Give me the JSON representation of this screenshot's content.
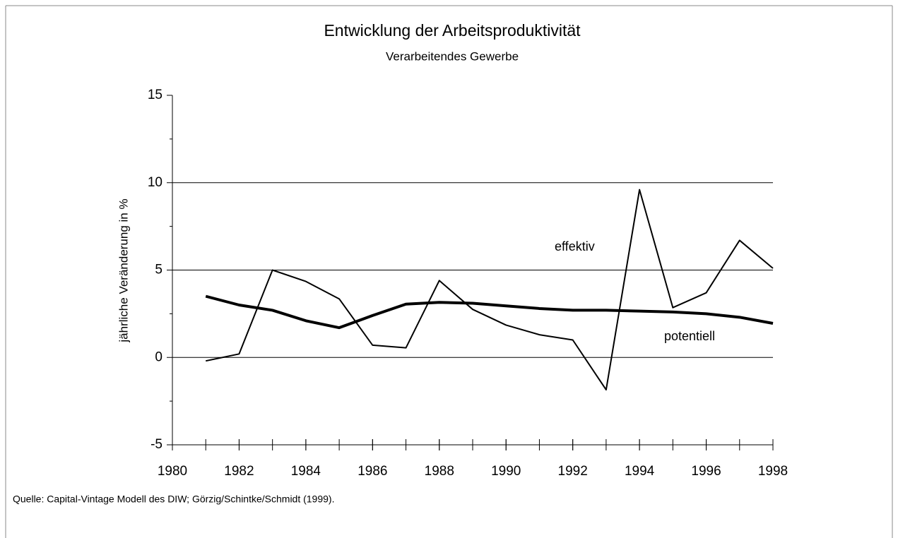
{
  "chart_data": {
    "type": "line",
    "title": "Entwicklung der Arbeitsproduktivität",
    "subtitle": "Verarbeitendes Gewerbe",
    "y_label": "jährliche Veränderung in %",
    "source": "Quelle: Capital-Vintage Modell des DIW; Görzig/Schintke/Schmidt (1999).",
    "x": [
      1981,
      1982,
      1983,
      1984,
      1985,
      1986,
      1987,
      1988,
      1989,
      1990,
      1991,
      1992,
      1993,
      1994,
      1995,
      1996,
      1997,
      1998
    ],
    "series": [
      {
        "name": "effektiv",
        "color": "#000000",
        "values": [
          -0.2,
          0.2,
          5.0,
          4.35,
          3.35,
          0.7,
          0.55,
          4.4,
          2.75,
          1.85,
          1.3,
          1.0,
          -1.85,
          9.6,
          2.85,
          3.7,
          6.7,
          5.1
        ]
      },
      {
        "name": "potentiell",
        "color": "#000000",
        "values": [
          3.5,
          3.0,
          2.7,
          2.1,
          1.7,
          2.4,
          3.05,
          3.15,
          3.1,
          2.95,
          2.8,
          2.7,
          2.7,
          2.65,
          2.6,
          2.5,
          2.3,
          1.95
        ]
      }
    ],
    "xlim": [
      1980,
      1998
    ],
    "xticks": [
      1980,
      1982,
      1984,
      1986,
      1988,
      1990,
      1992,
      1994,
      1996,
      1998
    ],
    "ylim": [
      -5,
      15
    ],
    "yticks": [
      -5,
      0,
      5,
      10,
      15
    ],
    "yminor_ticks": [
      -2.5,
      2.5,
      7.5,
      12.5
    ],
    "grid": true
  }
}
